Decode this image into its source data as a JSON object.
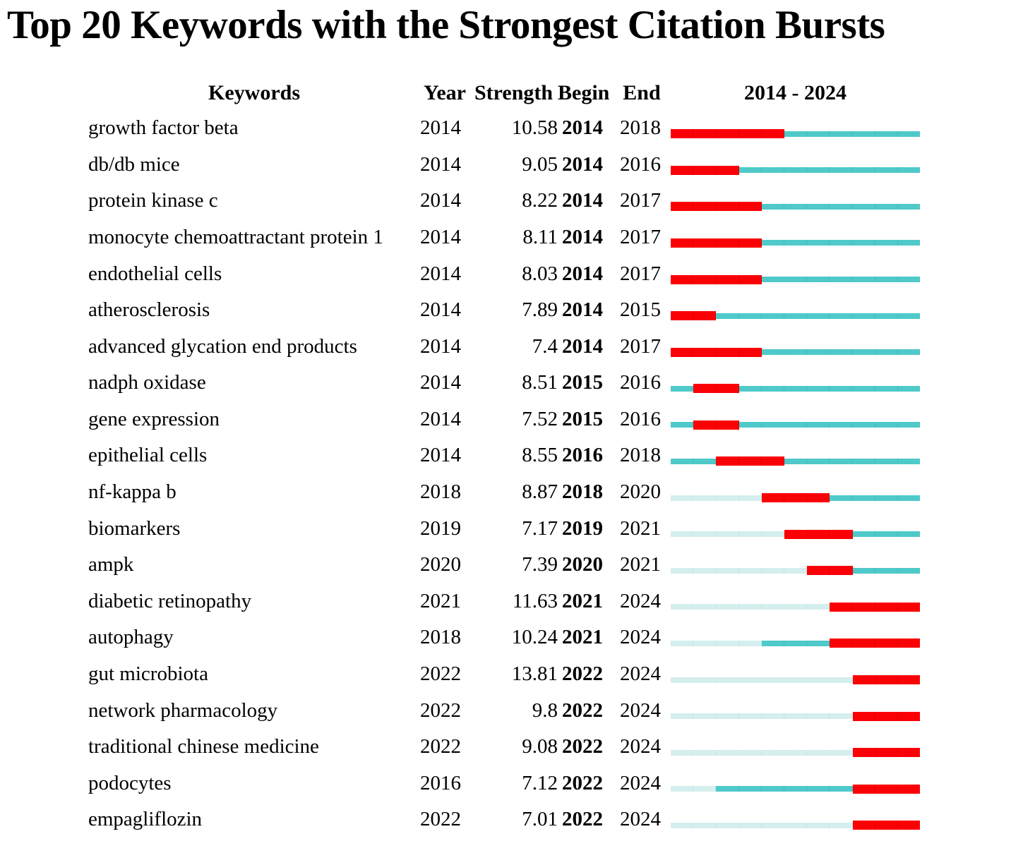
{
  "title": "Top 20 Keywords with the Strongest Citation Bursts",
  "header": {
    "keywords": "Keywords",
    "year": "Year",
    "strength": "Strength",
    "begin": "Begin",
    "end": "End",
    "timeline": "2014 - 2024"
  },
  "colors": {
    "burst": "#FA0106",
    "burst_separator": "#DB0004",
    "present": "#4FC9C9",
    "present_separator": "#3FBDBD",
    "pre_appearance": "#D5EEEE",
    "pre_separator": "#C6E6E6"
  },
  "chart_data": {
    "type": "table",
    "title": "Top 20 Keywords with the Strongest Citation Bursts",
    "columns": [
      "Keywords",
      "Year",
      "Strength",
      "Begin",
      "End",
      "2014 - 2024"
    ],
    "timeline_start": 2014,
    "timeline_end": 2024,
    "rows": [
      {
        "keyword": "growth factor beta",
        "year": "2014",
        "strength": "10.58",
        "begin": "2014",
        "end": "2018"
      },
      {
        "keyword": "db/db mice",
        "year": "2014",
        "strength": "9.05",
        "begin": "2014",
        "end": "2016"
      },
      {
        "keyword": "protein kinase c",
        "year": "2014",
        "strength": "8.22",
        "begin": "2014",
        "end": "2017"
      },
      {
        "keyword": "monocyte chemoattractant protein 1",
        "year": "2014",
        "strength": "8.11",
        "begin": "2014",
        "end": "2017"
      },
      {
        "keyword": "endothelial cells",
        "year": "2014",
        "strength": "8.03",
        "begin": "2014",
        "end": "2017"
      },
      {
        "keyword": "atherosclerosis",
        "year": "2014",
        "strength": "7.89",
        "begin": "2014",
        "end": "2015"
      },
      {
        "keyword": "advanced glycation end products",
        "year": "2014",
        "strength": "7.4",
        "begin": "2014",
        "end": "2017"
      },
      {
        "keyword": "nadph oxidase",
        "year": "2014",
        "strength": "8.51",
        "begin": "2015",
        "end": "2016"
      },
      {
        "keyword": "gene expression",
        "year": "2014",
        "strength": "7.52",
        "begin": "2015",
        "end": "2016"
      },
      {
        "keyword": "epithelial cells",
        "year": "2014",
        "strength": "8.55",
        "begin": "2016",
        "end": "2018"
      },
      {
        "keyword": "nf-kappa b",
        "year": "2018",
        "strength": "8.87",
        "begin": "2018",
        "end": "2020"
      },
      {
        "keyword": "biomarkers",
        "year": "2019",
        "strength": "7.17",
        "begin": "2019",
        "end": "2021"
      },
      {
        "keyword": "ampk",
        "year": "2020",
        "strength": "7.39",
        "begin": "2020",
        "end": "2021"
      },
      {
        "keyword": "diabetic retinopathy",
        "year": "2021",
        "strength": "11.63",
        "begin": "2021",
        "end": "2024"
      },
      {
        "keyword": "autophagy",
        "year": "2018",
        "strength": "10.24",
        "begin": "2021",
        "end": "2024"
      },
      {
        "keyword": "gut microbiota",
        "year": "2022",
        "strength": "13.81",
        "begin": "2022",
        "end": "2024"
      },
      {
        "keyword": "network pharmacology",
        "year": "2022",
        "strength": "9.8",
        "begin": "2022",
        "end": "2024"
      },
      {
        "keyword": "traditional chinese medicine",
        "year": "2022",
        "strength": "9.08",
        "begin": "2022",
        "end": "2024"
      },
      {
        "keyword": "podocytes",
        "year": "2016",
        "strength": "7.12",
        "begin": "2022",
        "end": "2024"
      },
      {
        "keyword": "empagliflozin",
        "year": "2022",
        "strength": "7.01",
        "begin": "2022",
        "end": "2024"
      }
    ]
  }
}
